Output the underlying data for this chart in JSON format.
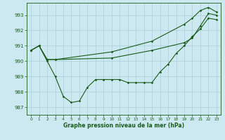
{
  "xlabel": "Graphe pression niveau de la mer (hPa)",
  "background_color": "#cce8f0",
  "grid_color": "#aacfdb",
  "line_color": "#1a5c1a",
  "ylim": [
    986.5,
    993.8
  ],
  "xlim": [
    -0.5,
    23.5
  ],
  "yticks": [
    987,
    988,
    989,
    990,
    991,
    992,
    993
  ],
  "xticks": [
    0,
    1,
    2,
    3,
    4,
    5,
    6,
    7,
    8,
    9,
    10,
    11,
    12,
    13,
    14,
    15,
    16,
    17,
    18,
    19,
    20,
    21,
    22,
    23
  ],
  "line1_x": [
    0,
    1,
    2,
    3,
    4,
    5,
    6,
    7,
    8,
    9,
    10,
    11,
    12,
    13,
    14,
    15,
    16,
    17,
    18,
    19,
    20,
    21,
    22,
    23
  ],
  "line1_y": [
    990.7,
    991.0,
    990.0,
    989.0,
    987.7,
    987.3,
    987.4,
    988.3,
    988.8,
    988.8,
    988.8,
    988.8,
    988.6,
    988.6,
    988.6,
    988.6,
    989.3,
    989.8,
    990.5,
    991.0,
    991.6,
    992.1,
    992.8,
    992.7
  ],
  "line2_x": [
    0,
    1,
    2,
    3,
    10,
    15,
    19,
    20,
    21,
    22,
    23
  ],
  "line2_y": [
    990.7,
    991.0,
    990.1,
    990.1,
    990.6,
    991.3,
    992.4,
    992.8,
    993.3,
    993.5,
    993.2
  ],
  "line3_x": [
    0,
    1,
    2,
    3,
    10,
    15,
    19,
    20,
    21,
    22,
    23
  ],
  "line3_y": [
    990.7,
    991.0,
    990.1,
    990.1,
    990.2,
    990.7,
    991.2,
    991.5,
    992.3,
    993.1,
    993.0
  ]
}
